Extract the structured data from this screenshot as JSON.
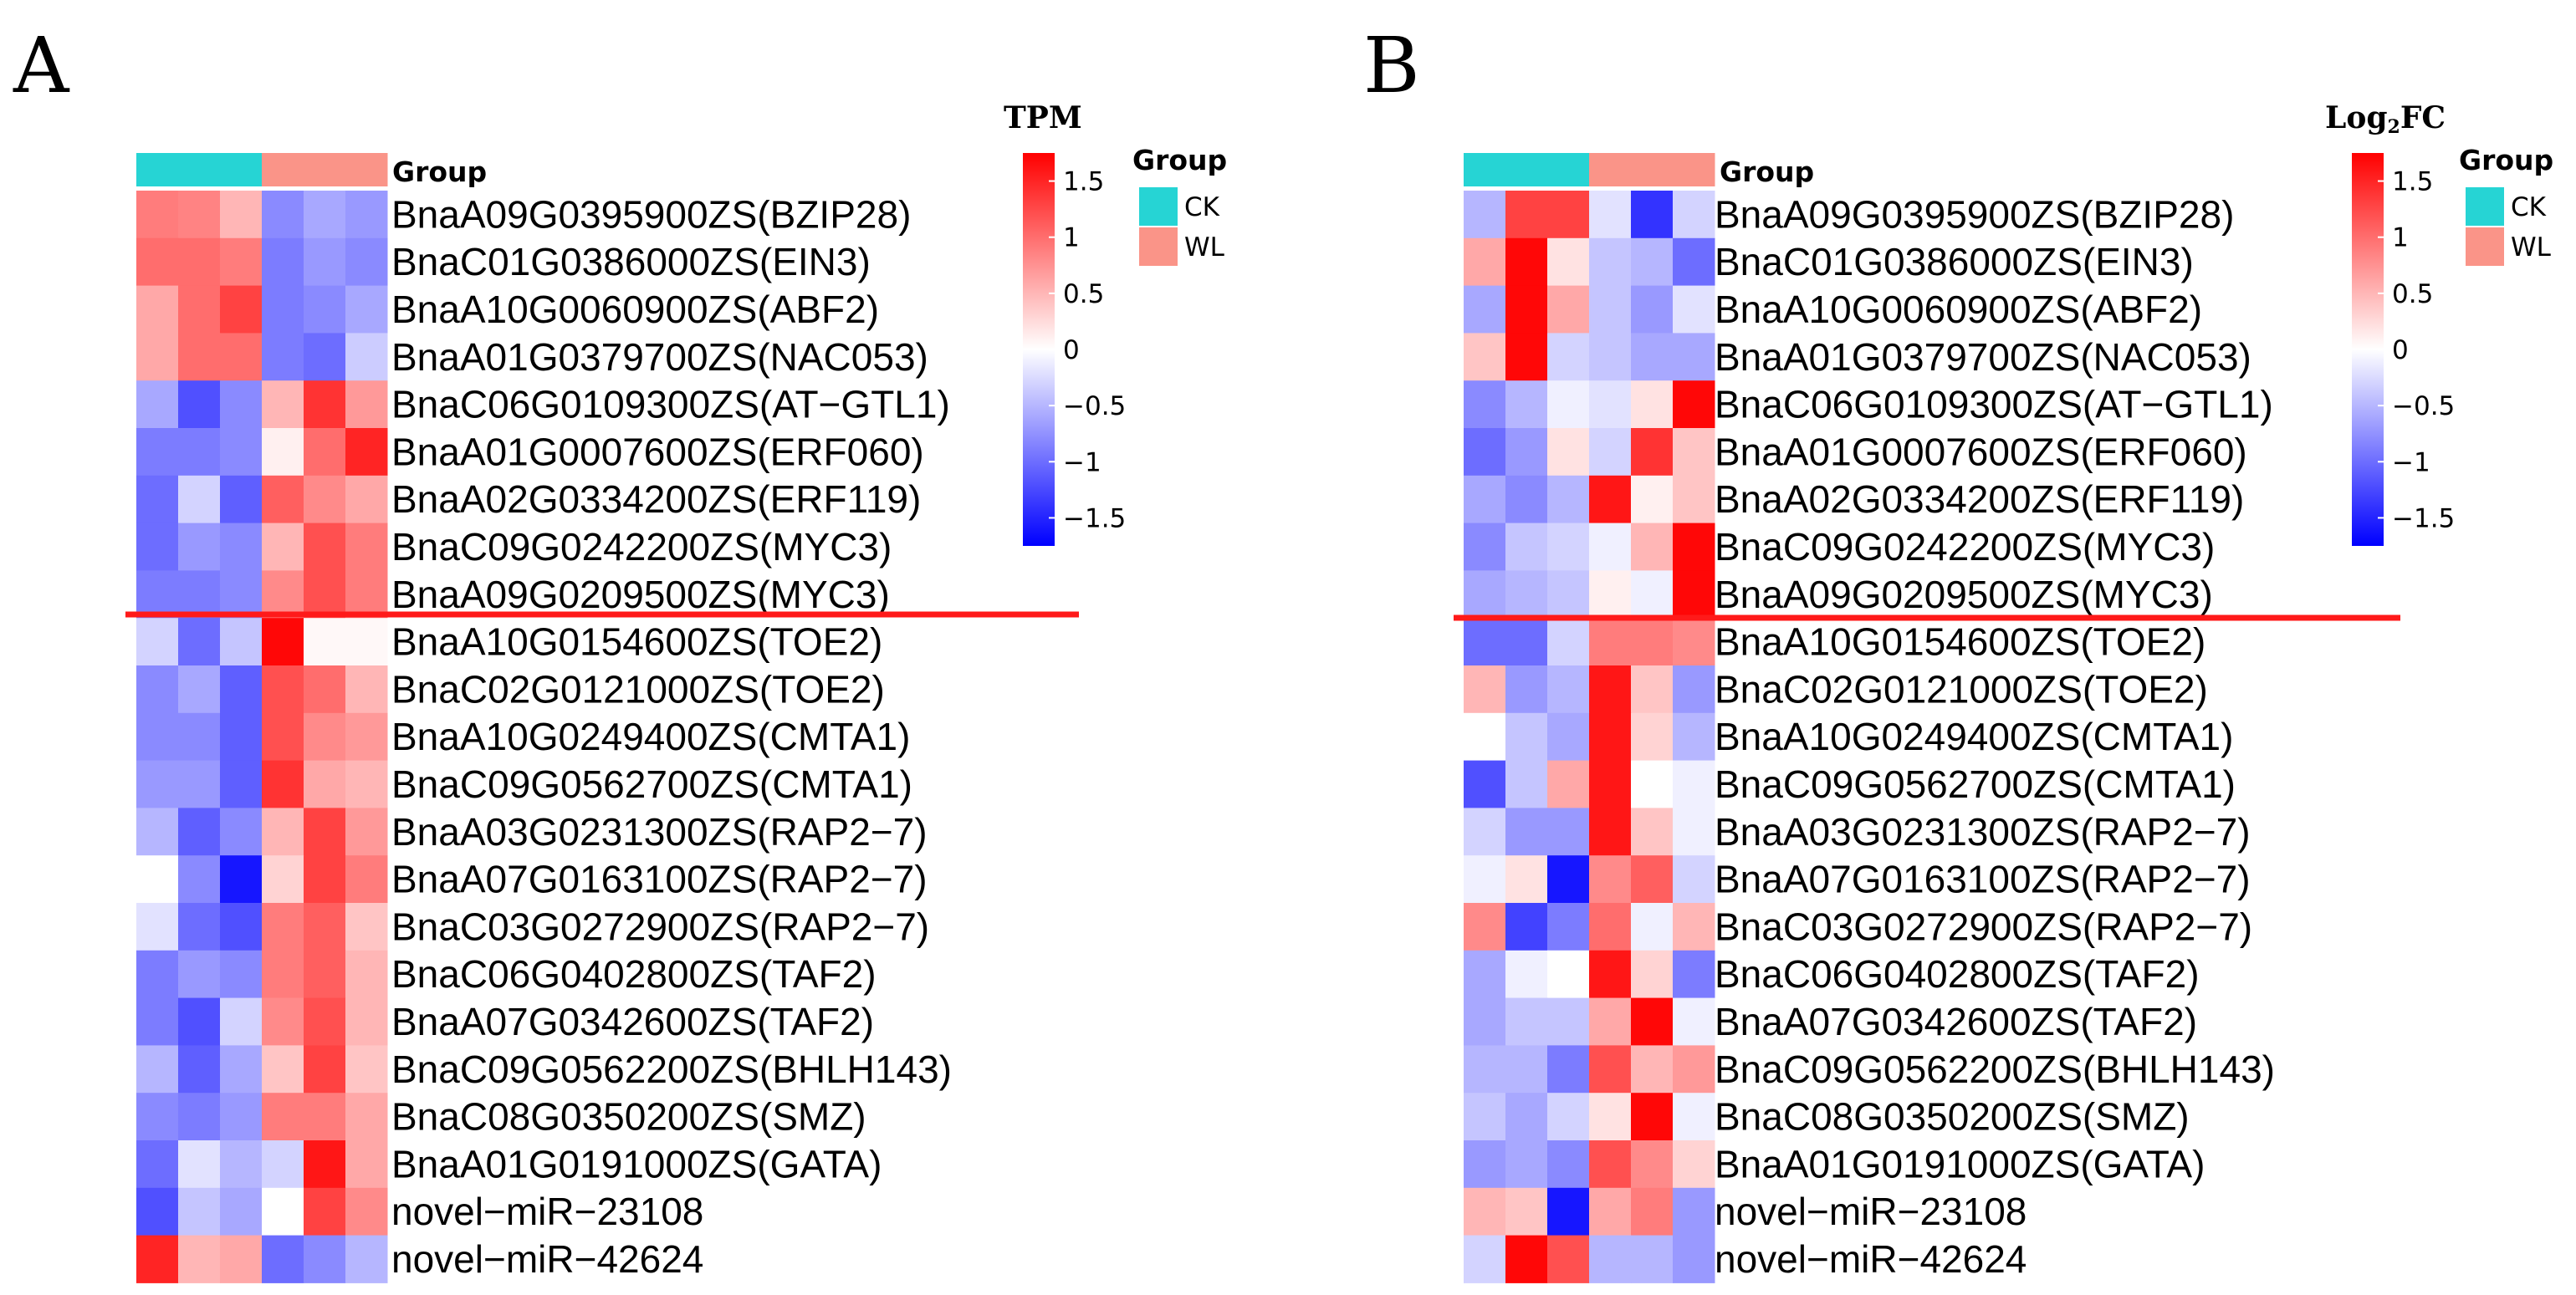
{
  "colors": {
    "ck": "#26D4D4",
    "wl": "#FA9488",
    "low": "#0000FF",
    "mid": "#FFFFFF",
    "high": "#FF0000",
    "divider": "#FF1A1A"
  },
  "chart_data": [
    {
      "type": "heatmap",
      "panel": "A",
      "scale_title": "TPM",
      "scale_title_sub": "",
      "scale_ticks": [
        1.5,
        1,
        0.5,
        0,
        -0.5,
        -1,
        -1.5
      ],
      "scale_tick_labels": [
        "1.5",
        "1",
        "0.5",
        "0",
        "−0.5",
        "−1",
        "−1.5"
      ],
      "range": [
        -1.75,
        1.75
      ],
      "group_bar_label": "Group",
      "legend_title": "Group",
      "legend_items": [
        {
          "label": "CK",
          "color": "#26D4D4"
        },
        {
          "label": "WL",
          "color": "#FA9488"
        }
      ],
      "column_groups": [
        "CK",
        "CK",
        "CK",
        "WL",
        "WL",
        "WL"
      ],
      "divider_after_row": 9,
      "rows": [
        "BnaA09G0395900ZS(BZIP28)",
        "BnaC01G0386000ZS(EIN3)",
        "BnaA10G0060900ZS(ABF2)",
        "BnaA01G0379700ZS(NAC053)",
        "BnaC06G0109300ZS(AT−GTL1)",
        "BnaA01G0007600ZS(ERF060)",
        "BnaA02G0334200ZS(ERF119)",
        "BnaC09G0242200ZS(MYC3)",
        "BnaA09G0209500ZS(MYC3)",
        "BnaA10G0154600ZS(TOE2)",
        "BnaC02G0121000ZS(TOE2)",
        "BnaA10G0249400ZS(CMTA1)",
        "BnaC09G0562700ZS(CMTA1)",
        "BnaA03G0231300ZS(RAP2−7)",
        "BnaA07G0163100ZS(RAP2−7)",
        "BnaC03G0272900ZS(RAP2−7)",
        "BnaC06G0402800ZS(TAF2)",
        "BnaA07G0342600ZS(TAF2)",
        "BnaC09G0562200ZS(BHLH143)",
        "BnaC08G0350200ZS(SMZ)",
        "BnaA01G0191000ZS(GATA)",
        "novel−miR−23108",
        "novel−miR−42624"
      ],
      "values": [
        [
          0.9,
          0.85,
          0.5,
          -0.8,
          -0.6,
          -0.7
        ],
        [
          1.0,
          1.0,
          0.9,
          -0.9,
          -0.7,
          -0.8
        ],
        [
          0.6,
          1.0,
          1.3,
          -0.9,
          -0.8,
          -0.6
        ],
        [
          0.6,
          1.0,
          1.0,
          -0.9,
          -1.0,
          -0.35
        ],
        [
          -0.6,
          -1.2,
          -0.8,
          0.5,
          1.4,
          0.7
        ],
        [
          -0.9,
          -0.9,
          -0.8,
          0.1,
          1.0,
          1.5
        ],
        [
          -1.0,
          -0.3,
          -1.1,
          1.1,
          0.8,
          0.6
        ],
        [
          -1.0,
          -0.7,
          -0.8,
          0.5,
          1.2,
          0.9
        ],
        [
          -0.9,
          -0.9,
          -0.8,
          0.8,
          1.2,
          0.9
        ],
        [
          -0.3,
          -1.0,
          -0.4,
          1.7,
          0.05,
          0.05
        ],
        [
          -0.8,
          -0.6,
          -1.1,
          1.2,
          1.0,
          0.5
        ],
        [
          -0.8,
          -0.8,
          -1.1,
          1.2,
          0.8,
          0.7
        ],
        [
          -0.7,
          -0.7,
          -1.1,
          1.4,
          0.6,
          0.5
        ],
        [
          -0.5,
          -1.1,
          -0.8,
          0.5,
          1.3,
          0.7
        ],
        [
          0.0,
          -0.8,
          -1.6,
          0.3,
          1.3,
          0.9
        ],
        [
          -0.2,
          -1.0,
          -1.2,
          0.9,
          1.1,
          0.4
        ],
        [
          -0.9,
          -0.7,
          -0.8,
          0.9,
          1.1,
          0.5
        ],
        [
          -0.9,
          -1.2,
          -0.3,
          0.8,
          1.2,
          0.5
        ],
        [
          -0.5,
          -1.1,
          -0.6,
          0.4,
          1.3,
          0.4
        ],
        [
          -0.8,
          -0.9,
          -0.7,
          0.9,
          0.9,
          0.6
        ],
        [
          -1.0,
          -0.2,
          -0.5,
          -0.3,
          1.6,
          0.6
        ],
        [
          -1.2,
          -0.4,
          -0.6,
          0.0,
          1.3,
          0.8
        ],
        [
          1.5,
          0.5,
          0.6,
          -1.0,
          -0.8,
          -0.5
        ]
      ]
    },
    {
      "type": "heatmap",
      "panel": "B",
      "scale_title": "Log",
      "scale_title_sub": "2",
      "scale_title_suffix": "FC",
      "scale_ticks": [
        1.5,
        1,
        0.5,
        0,
        -0.5,
        -1,
        -1.5
      ],
      "scale_tick_labels": [
        "1.5",
        "1",
        "0.5",
        "0",
        "−0.5",
        "−1",
        "−1.5"
      ],
      "range": [
        -1.75,
        1.75
      ],
      "group_bar_label": "Group",
      "legend_title": "Group",
      "legend_items": [
        {
          "label": "CK",
          "color": "#26D4D4"
        },
        {
          "label": "WL",
          "color": "#FA9488"
        }
      ],
      "column_groups": [
        "CK",
        "CK",
        "CK",
        "WL",
        "WL",
        "WL"
      ],
      "divider_after_row": 9,
      "rows": [
        "BnaA09G0395900ZS(BZIP28)",
        "BnaC01G0386000ZS(EIN3)",
        "BnaA10G0060900ZS(ABF2)",
        "BnaA01G0379700ZS(NAC053)",
        "BnaC06G0109300ZS(AT−GTL1)",
        "BnaA01G0007600ZS(ERF060)",
        "BnaA02G0334200ZS(ERF119)",
        "BnaC09G0242200ZS(MYC3)",
        "BnaA09G0209500ZS(MYC3)",
        "BnaA10G0154600ZS(TOE2)",
        "BnaC02G0121000ZS(TOE2)",
        "BnaA10G0249400ZS(CMTA1)",
        "BnaC09G0562700ZS(CMTA1)",
        "BnaA03G0231300ZS(RAP2−7)",
        "BnaA07G0163100ZS(RAP2−7)",
        "BnaC03G0272900ZS(RAP2−7)",
        "BnaC06G0402800ZS(TAF2)",
        "BnaA07G0342600ZS(TAF2)",
        "BnaC09G0562200ZS(BHLH143)",
        "BnaC08G0350200ZS(SMZ)",
        "BnaA01G0191000ZS(GATA)",
        "novel−miR−23108",
        "novel−miR−42624"
      ],
      "values": [
        [
          -0.5,
          1.3,
          1.3,
          -0.2,
          -1.4,
          -0.3
        ],
        [
          0.6,
          1.7,
          0.2,
          -0.4,
          -0.5,
          -1.0
        ],
        [
          -0.6,
          1.7,
          0.6,
          -0.4,
          -0.7,
          -0.2
        ],
        [
          0.4,
          1.7,
          -0.3,
          -0.4,
          -0.6,
          -0.6
        ],
        [
          -0.8,
          -0.5,
          -0.1,
          -0.2,
          0.2,
          1.7
        ],
        [
          -1.0,
          -0.7,
          0.2,
          -0.3,
          1.4,
          0.4
        ],
        [
          -0.6,
          -0.8,
          -0.5,
          1.6,
          0.1,
          0.4
        ],
        [
          -0.8,
          -0.4,
          -0.3,
          -0.1,
          0.5,
          1.7
        ],
        [
          -0.6,
          -0.5,
          -0.4,
          0.1,
          -0.1,
          1.7
        ],
        [
          -1.0,
          -1.0,
          -0.3,
          0.9,
          0.9,
          0.8
        ],
        [
          0.5,
          -0.7,
          -0.5,
          1.6,
          0.4,
          -0.7
        ],
        [
          0.0,
          -0.4,
          -0.6,
          1.6,
          0.3,
          -0.5
        ],
        [
          -1.2,
          -0.4,
          0.6,
          1.6,
          0.0,
          -0.1
        ],
        [
          -0.3,
          -0.7,
          -0.7,
          1.6,
          0.4,
          -0.1
        ],
        [
          -0.1,
          0.2,
          -1.6,
          0.8,
          1.1,
          -0.3
        ],
        [
          0.8,
          -1.3,
          -0.9,
          1.0,
          -0.1,
          0.5
        ],
        [
          -0.6,
          -0.1,
          0.0,
          1.6,
          0.3,
          -0.9
        ],
        [
          -0.6,
          -0.4,
          -0.4,
          0.6,
          1.7,
          -0.1
        ],
        [
          -0.5,
          -0.5,
          -0.9,
          1.2,
          0.5,
          0.7
        ],
        [
          -0.4,
          -0.6,
          -0.3,
          0.2,
          1.7,
          -0.1
        ],
        [
          -0.7,
          -0.6,
          -0.8,
          1.2,
          0.8,
          0.3
        ],
        [
          0.5,
          0.4,
          -1.6,
          0.6,
          0.9,
          -0.7
        ],
        [
          -0.3,
          1.7,
          1.2,
          -0.5,
          -0.5,
          -0.7
        ]
      ]
    }
  ]
}
